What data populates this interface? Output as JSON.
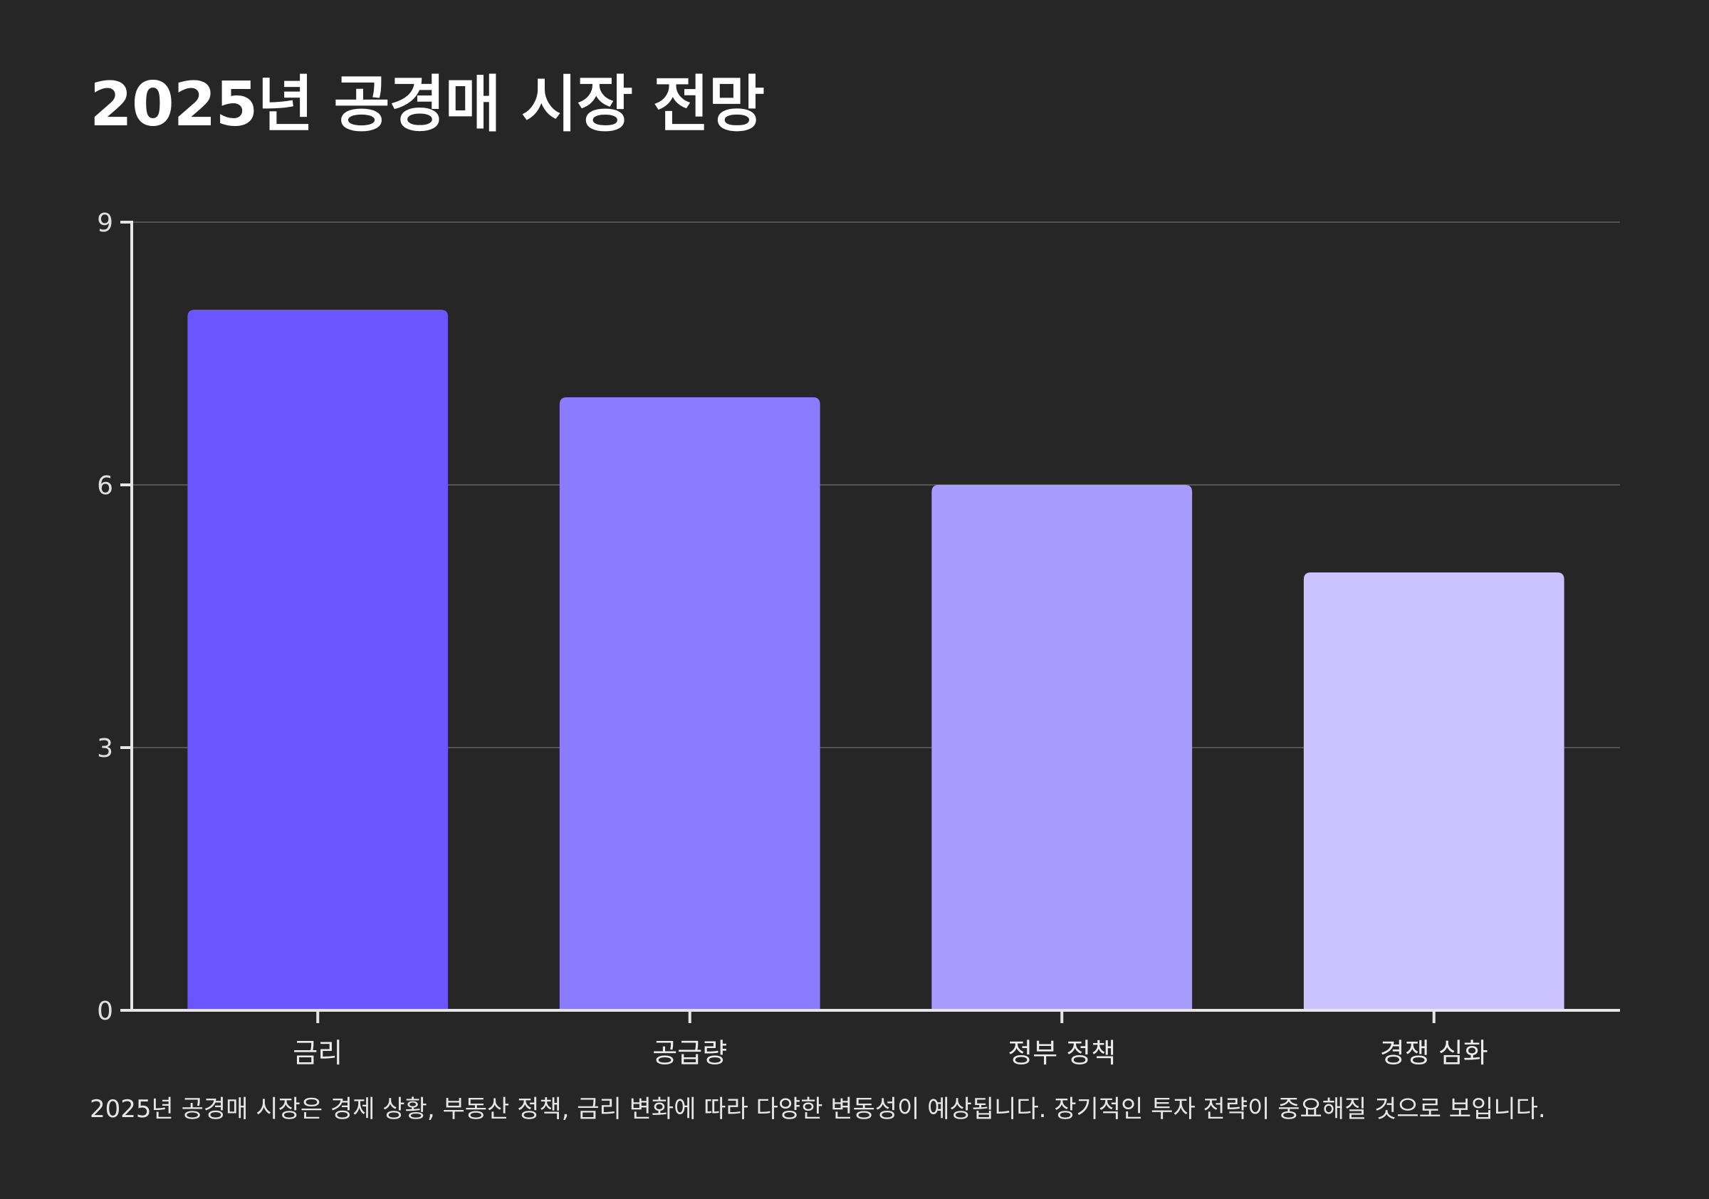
{
  "title": "2025년 공경매 시장 전망",
  "caption": "2025년 공경매 시장은 경제 상황, 부동산 정책, 금리 변화에 따라 다양한 변동성이 예상됩니다. 장기적인 투자 전략이 중요해질 것으로 보입니다.",
  "chart_data": {
    "type": "bar",
    "categories": [
      "금리",
      "공급량",
      "정부 정책",
      "경쟁 심화"
    ],
    "values": [
      8,
      7,
      6,
      5
    ],
    "colors": [
      "#6a55ff",
      "#8a7bff",
      "#a89dff",
      "#cbc3ff"
    ],
    "ylim": [
      0,
      9
    ],
    "yticks": [
      0,
      3,
      6,
      9
    ],
    "xlabel": "",
    "ylabel": "",
    "grid": true,
    "legend": "none"
  }
}
